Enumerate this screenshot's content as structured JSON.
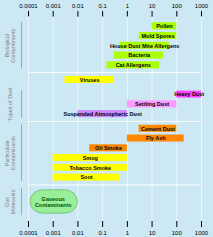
{
  "chart_data": {
    "type": "bar",
    "orientation": "horizontal",
    "categories": [
      "Pollen",
      "Mold Spores",
      "House Dust Mite Allergens",
      "Bacteria",
      "Cat Allergens",
      "Viruses",
      "Heavy Dust",
      "Settling Dust",
      "Suspended Atmospheric Dust",
      "Cement Dust",
      "Fly Ash",
      "Oil Smoke",
      "Smog",
      "Tobacco Smoke",
      "Soot"
    ],
    "starts": [
      10,
      3,
      0.5,
      0.3,
      0.15,
      0.003,
      100,
      1,
      0.01,
      3,
      1,
      0.03,
      0.001,
      0.001,
      0.001
    ],
    "ends": [
      100,
      100,
      50,
      30,
      20,
      0.3,
      1000,
      100,
      1,
      100,
      200,
      1,
      1,
      1,
      0.5
    ],
    "colors": [
      "#aaff00",
      "#aaff00",
      "#aaff00",
      "#aaff00",
      "#aaff00",
      "#ffff00",
      "#ff44ff",
      "#ff99ff",
      "#cc88ff",
      "#ff8800",
      "#ff8800",
      "#ff8800",
      "#ffff00",
      "#ffff00",
      "#ffff00"
    ],
    "log": "x",
    "xlim": [
      0.0001,
      1000
    ],
    "xticks": [
      0.0001,
      0.001,
      0.01,
      0.1,
      1,
      10,
      100,
      1000
    ],
    "grid": true,
    "tick_labels": "x",
    "background": "#cce8f4",
    "groups": [
      {
        "name": "Biological\nContaminants",
        "categories": [
          "Pollen",
          "Mold Spores",
          "House Dust Mite Allergens",
          "Bacteria",
          "Cat Allergens"
        ]
      },
      {
        "name": "Types of Dust",
        "categories": [
          "Heavy Dust",
          "Settling Dust",
          "Suspended Atmospheric Dust"
        ]
      },
      {
        "name": "Particulate\nContaminants",
        "categories": [
          "Cement Dust",
          "Fly Ash",
          "Oil Smoke",
          "Smog",
          "Tobacco Smoke",
          "Soot"
        ]
      },
      {
        "name": "Gas\nMolecules",
        "categories": []
      }
    ],
    "annotations": [
      {
        "text": "Gaseous\nContaminants",
        "group": "Gas\nMolecules",
        "color": "#005500",
        "fill": "#99ee99",
        "stroke": "#55aa55"
      }
    ]
  }
}
